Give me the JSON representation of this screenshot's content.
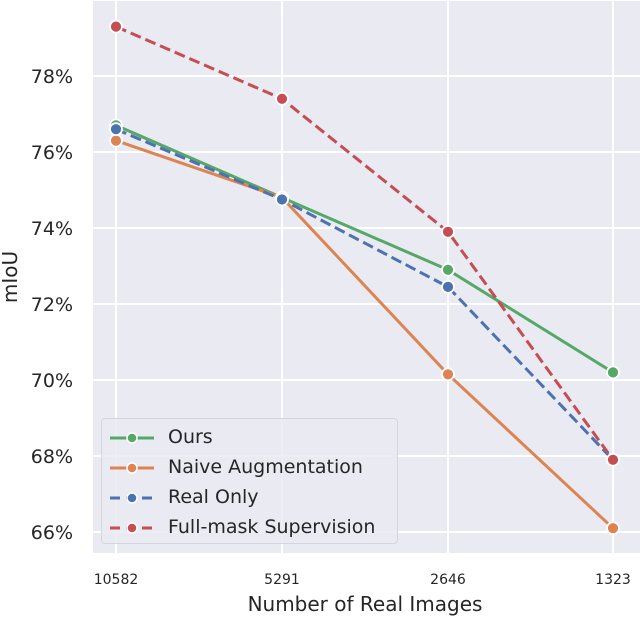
{
  "chart_data": {
    "type": "line",
    "title": "",
    "xlabel": "Number of Real Images",
    "ylabel": "mIoU",
    "categories": [
      "10582",
      "5291",
      "2646",
      "1323"
    ],
    "yticks": [
      "66%",
      "68%",
      "70%",
      "72%",
      "74%",
      "76%",
      "78%"
    ],
    "ytick_values": [
      66,
      68,
      70,
      72,
      74,
      76,
      78
    ],
    "ylim": [
      65.5,
      80.0
    ],
    "grid": true,
    "legend_position": "lower left",
    "series": [
      {
        "name": "Ours",
        "color": "#55a868",
        "dash": "solid",
        "values": [
          76.7,
          74.8,
          72.9,
          70.2
        ]
      },
      {
        "name": "Naive Augmentation",
        "color": "#dd8452",
        "dash": "solid",
        "values": [
          76.3,
          74.8,
          70.15,
          66.1
        ]
      },
      {
        "name": "Real Only",
        "color": "#4c72b0",
        "dash": "dashed",
        "values": [
          76.6,
          74.75,
          72.45,
          67.9
        ]
      },
      {
        "name": "Full-mask Supervision",
        "color": "#c44e52",
        "dash": "dashed",
        "values": [
          79.3,
          77.4,
          73.9,
          67.9
        ]
      }
    ]
  },
  "style": {
    "plot_bg": "#eaeaf2",
    "grid_color": "#ffffff"
  }
}
